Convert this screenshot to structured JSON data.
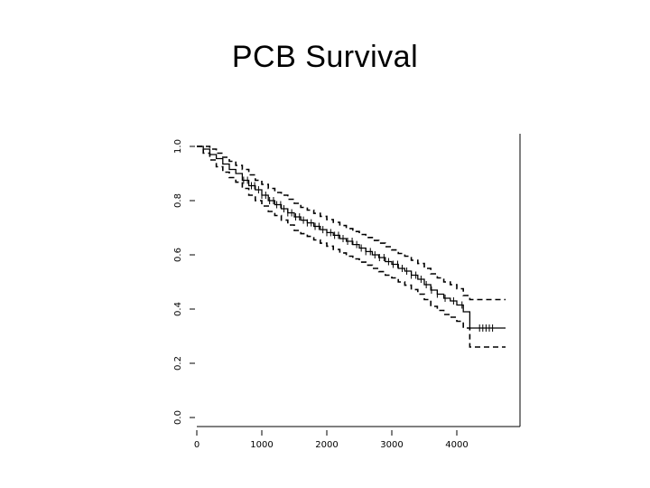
{
  "slide": {
    "title": "PCB Survival"
  },
  "chart_data": {
    "type": "line",
    "title": "",
    "xlabel": "",
    "ylabel": "",
    "xlim": [
      0,
      4800
    ],
    "ylim": [
      0,
      1
    ],
    "x_ticks": [
      0,
      1000,
      2000,
      3000,
      4000
    ],
    "x_tick_labels": [
      "0",
      "1000",
      "2000",
      "3000",
      "4000"
    ],
    "y_ticks": [
      0,
      0.2,
      0.4,
      0.6,
      0.8,
      1.0
    ],
    "y_tick_labels": [
      "0.0",
      "0.2",
      "0.4",
      "0.6",
      "0.8",
      "1.0"
    ],
    "grid": false,
    "series": [
      {
        "role": "estimate",
        "style": "solid",
        "x": [
          0,
          100,
          200,
          300,
          400,
          500,
          600,
          700,
          800,
          900,
          1000,
          1100,
          1200,
          1300,
          1400,
          1500,
          1600,
          1700,
          1800,
          1900,
          2000,
          2100,
          2200,
          2300,
          2400,
          2500,
          2600,
          2700,
          2800,
          2900,
          3000,
          3100,
          3200,
          3300,
          3400,
          3500,
          3600,
          3700,
          3800,
          3900,
          4000,
          4100,
          4200,
          4300,
          4400,
          4500,
          4600,
          4750
        ],
        "y": [
          1.0,
          0.99,
          0.97,
          0.955,
          0.935,
          0.915,
          0.9,
          0.875,
          0.855,
          0.84,
          0.82,
          0.8,
          0.785,
          0.77,
          0.755,
          0.74,
          0.728,
          0.718,
          0.705,
          0.693,
          0.682,
          0.672,
          0.66,
          0.65,
          0.638,
          0.625,
          0.612,
          0.6,
          0.59,
          0.575,
          0.565,
          0.55,
          0.54,
          0.525,
          0.51,
          0.49,
          0.47,
          0.455,
          0.44,
          0.43,
          0.415,
          0.39,
          0.33,
          0.33,
          0.33,
          0.33,
          0.33,
          0.33
        ]
      },
      {
        "role": "upper-ci",
        "style": "dashed",
        "x": [
          0,
          100,
          200,
          300,
          400,
          500,
          600,
          700,
          800,
          900,
          1000,
          1100,
          1200,
          1300,
          1400,
          1500,
          1600,
          1700,
          1800,
          1900,
          2000,
          2100,
          2200,
          2300,
          2400,
          2500,
          2600,
          2700,
          2800,
          2900,
          3000,
          3100,
          3200,
          3300,
          3400,
          3500,
          3600,
          3700,
          3800,
          3900,
          4000,
          4100,
          4200,
          4300,
          4400,
          4500,
          4600,
          4750
        ],
        "y": [
          1.0,
          1.0,
          0.99,
          0.975,
          0.96,
          0.945,
          0.93,
          0.915,
          0.895,
          0.875,
          0.86,
          0.845,
          0.83,
          0.82,
          0.805,
          0.79,
          0.775,
          0.765,
          0.753,
          0.742,
          0.73,
          0.72,
          0.708,
          0.697,
          0.686,
          0.675,
          0.664,
          0.653,
          0.643,
          0.63,
          0.618,
          0.605,
          0.595,
          0.58,
          0.568,
          0.55,
          0.53,
          0.515,
          0.5,
          0.49,
          0.475,
          0.45,
          0.435,
          0.435,
          0.435,
          0.435,
          0.435,
          0.435
        ]
      },
      {
        "role": "lower-ci",
        "style": "dashed",
        "x": [
          0,
          100,
          200,
          300,
          400,
          500,
          600,
          700,
          800,
          900,
          1000,
          1100,
          1200,
          1300,
          1400,
          1500,
          1600,
          1700,
          1800,
          1900,
          2000,
          2100,
          2200,
          2300,
          2400,
          2500,
          2600,
          2700,
          2800,
          2900,
          3000,
          3100,
          3200,
          3300,
          3400,
          3500,
          3600,
          3700,
          3800,
          3900,
          4000,
          4100,
          4200,
          4300,
          4400,
          4500,
          4600,
          4750
        ],
        "y": [
          1.0,
          0.975,
          0.95,
          0.925,
          0.905,
          0.885,
          0.868,
          0.845,
          0.82,
          0.8,
          0.78,
          0.76,
          0.745,
          0.728,
          0.71,
          0.69,
          0.678,
          0.668,
          0.655,
          0.643,
          0.632,
          0.62,
          0.607,
          0.595,
          0.585,
          0.573,
          0.562,
          0.55,
          0.538,
          0.525,
          0.515,
          0.5,
          0.488,
          0.472,
          0.455,
          0.435,
          0.41,
          0.395,
          0.38,
          0.37,
          0.355,
          0.33,
          0.26,
          0.26,
          0.26,
          0.26,
          0.26,
          0.26
        ]
      }
    ],
    "censor_times": [
      720,
      780,
      840,
      890,
      950,
      1000,
      1060,
      1120,
      1180,
      1230,
      1290,
      1340,
      1400,
      1460,
      1520,
      1580,
      1640,
      1700,
      1760,
      1820,
      1880,
      1940,
      2000,
      2060,
      2120,
      2180,
      2250,
      2320,
      2390,
      2460,
      2530,
      2600,
      2670,
      2740,
      2810,
      2880,
      2950,
      3020,
      3090,
      3160,
      3230,
      3300,
      3370,
      3450,
      3530,
      3610,
      3700,
      3820,
      3950,
      4080,
      4350,
      4400,
      4450,
      4500,
      4550
    ]
  }
}
